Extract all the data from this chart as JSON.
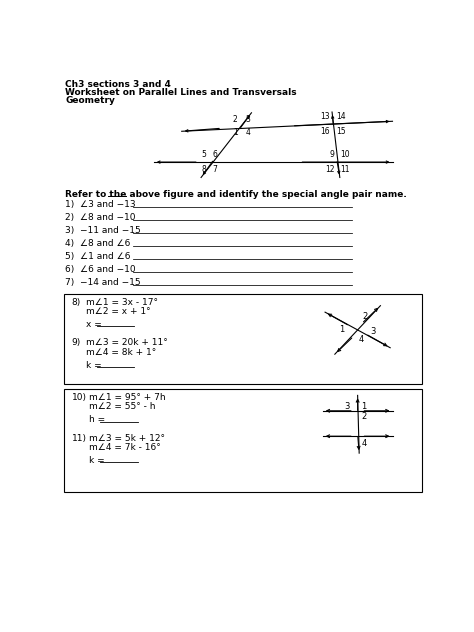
{
  "title_lines": [
    "Ch3 sections 3 and 4",
    "Worksheet on Parallel Lines and Transversals",
    "Geometry"
  ],
  "refer_text": "Refer to the above figure and identify the special angle pair name.",
  "questions_part1": [
    "1)  ∠3 and −13",
    "2)  ∠8 and −10",
    "3)  −11 and −15",
    "4)  ∠8 and ∠6",
    "5)  ∠1 and ∠6",
    "6)  ∠6 and −10",
    "7)  −14 and −15"
  ],
  "bg_color": "#ffffff",
  "text_color": "#000000",
  "font_size_title": 6.5,
  "font_size_body": 6.5,
  "font_size_small": 5.5
}
